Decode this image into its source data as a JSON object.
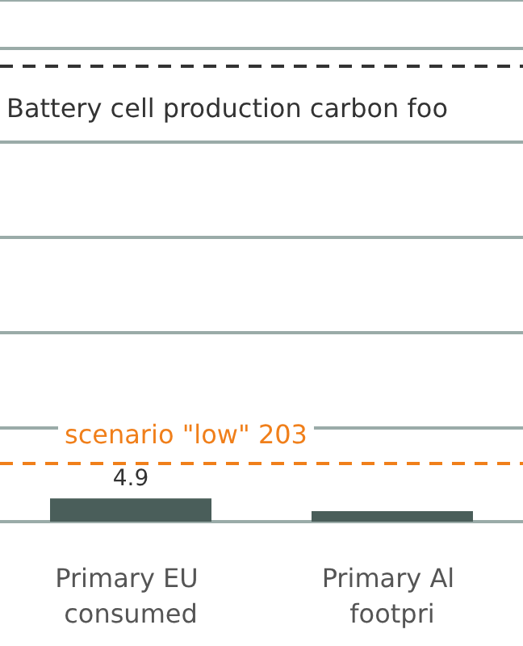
{
  "chart_data": {
    "type": "bar",
    "categories": [
      "Primary EU consumed",
      "Primary Al footpri"
    ],
    "values": [
      4.9,
      2.2
    ],
    "color": "#4a5e5a",
    "value_labels": [
      "4.9",
      null
    ],
    "ylim": [
      0,
      110
    ],
    "yticks": [
      {
        "value": 0,
        "label": null
      },
      {
        "value": 20,
        "label": null
      },
      {
        "value": 40,
        "label": null
      },
      {
        "value": 60,
        "label": null
      },
      {
        "value": 80,
        "label": null
      },
      {
        "value": 100,
        "label": null
      }
    ],
    "tick_labels": "x",
    "grid": "y",
    "ref_lines": [
      {
        "axis": "y",
        "value": 96,
        "label": "Battery cell production carbon foo",
        "color": "#333333",
        "line_style": "dashed"
      },
      {
        "axis": "y",
        "value": 12.3,
        "label": "scenario \"low\" 203",
        "color": "#f07f1a",
        "line_style": "dashed"
      }
    ]
  }
}
